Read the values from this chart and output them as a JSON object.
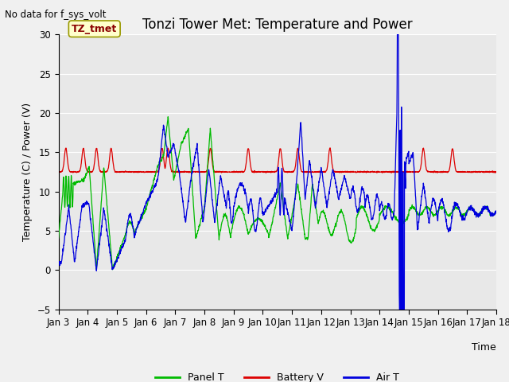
{
  "title": "Tonzi Tower Met: Temperature and Power",
  "xlabel": "Time",
  "ylabel": "Temperature (C) / Power (V)",
  "note": "No data for f_sys_volt",
  "tag_label": "TZ_tmet",
  "ylim": [
    -5,
    30
  ],
  "yticks": [
    -5,
    0,
    5,
    10,
    15,
    20,
    25,
    30
  ],
  "x_tick_labels": [
    "Jan 3",
    "Jan 4",
    "Jan 5",
    "Jan 6",
    "Jan 7",
    "Jan 8",
    "Jan 9",
    "Jan 10",
    "Jan 11",
    "Jan 12",
    "Jan 13",
    "Jan 14",
    "Jan 15",
    "Jan 16",
    "Jan 17",
    "Jan 18"
  ],
  "panel_color": "#00bb00",
  "battery_color": "#dd0000",
  "air_color": "#0000dd",
  "bg_color": "#e8e8e8",
  "fig_bg": "#f0f0f0",
  "legend_labels": [
    "Panel T",
    "Battery V",
    "Air T"
  ],
  "title_fontsize": 12,
  "label_fontsize": 9,
  "tick_fontsize": 8.5
}
